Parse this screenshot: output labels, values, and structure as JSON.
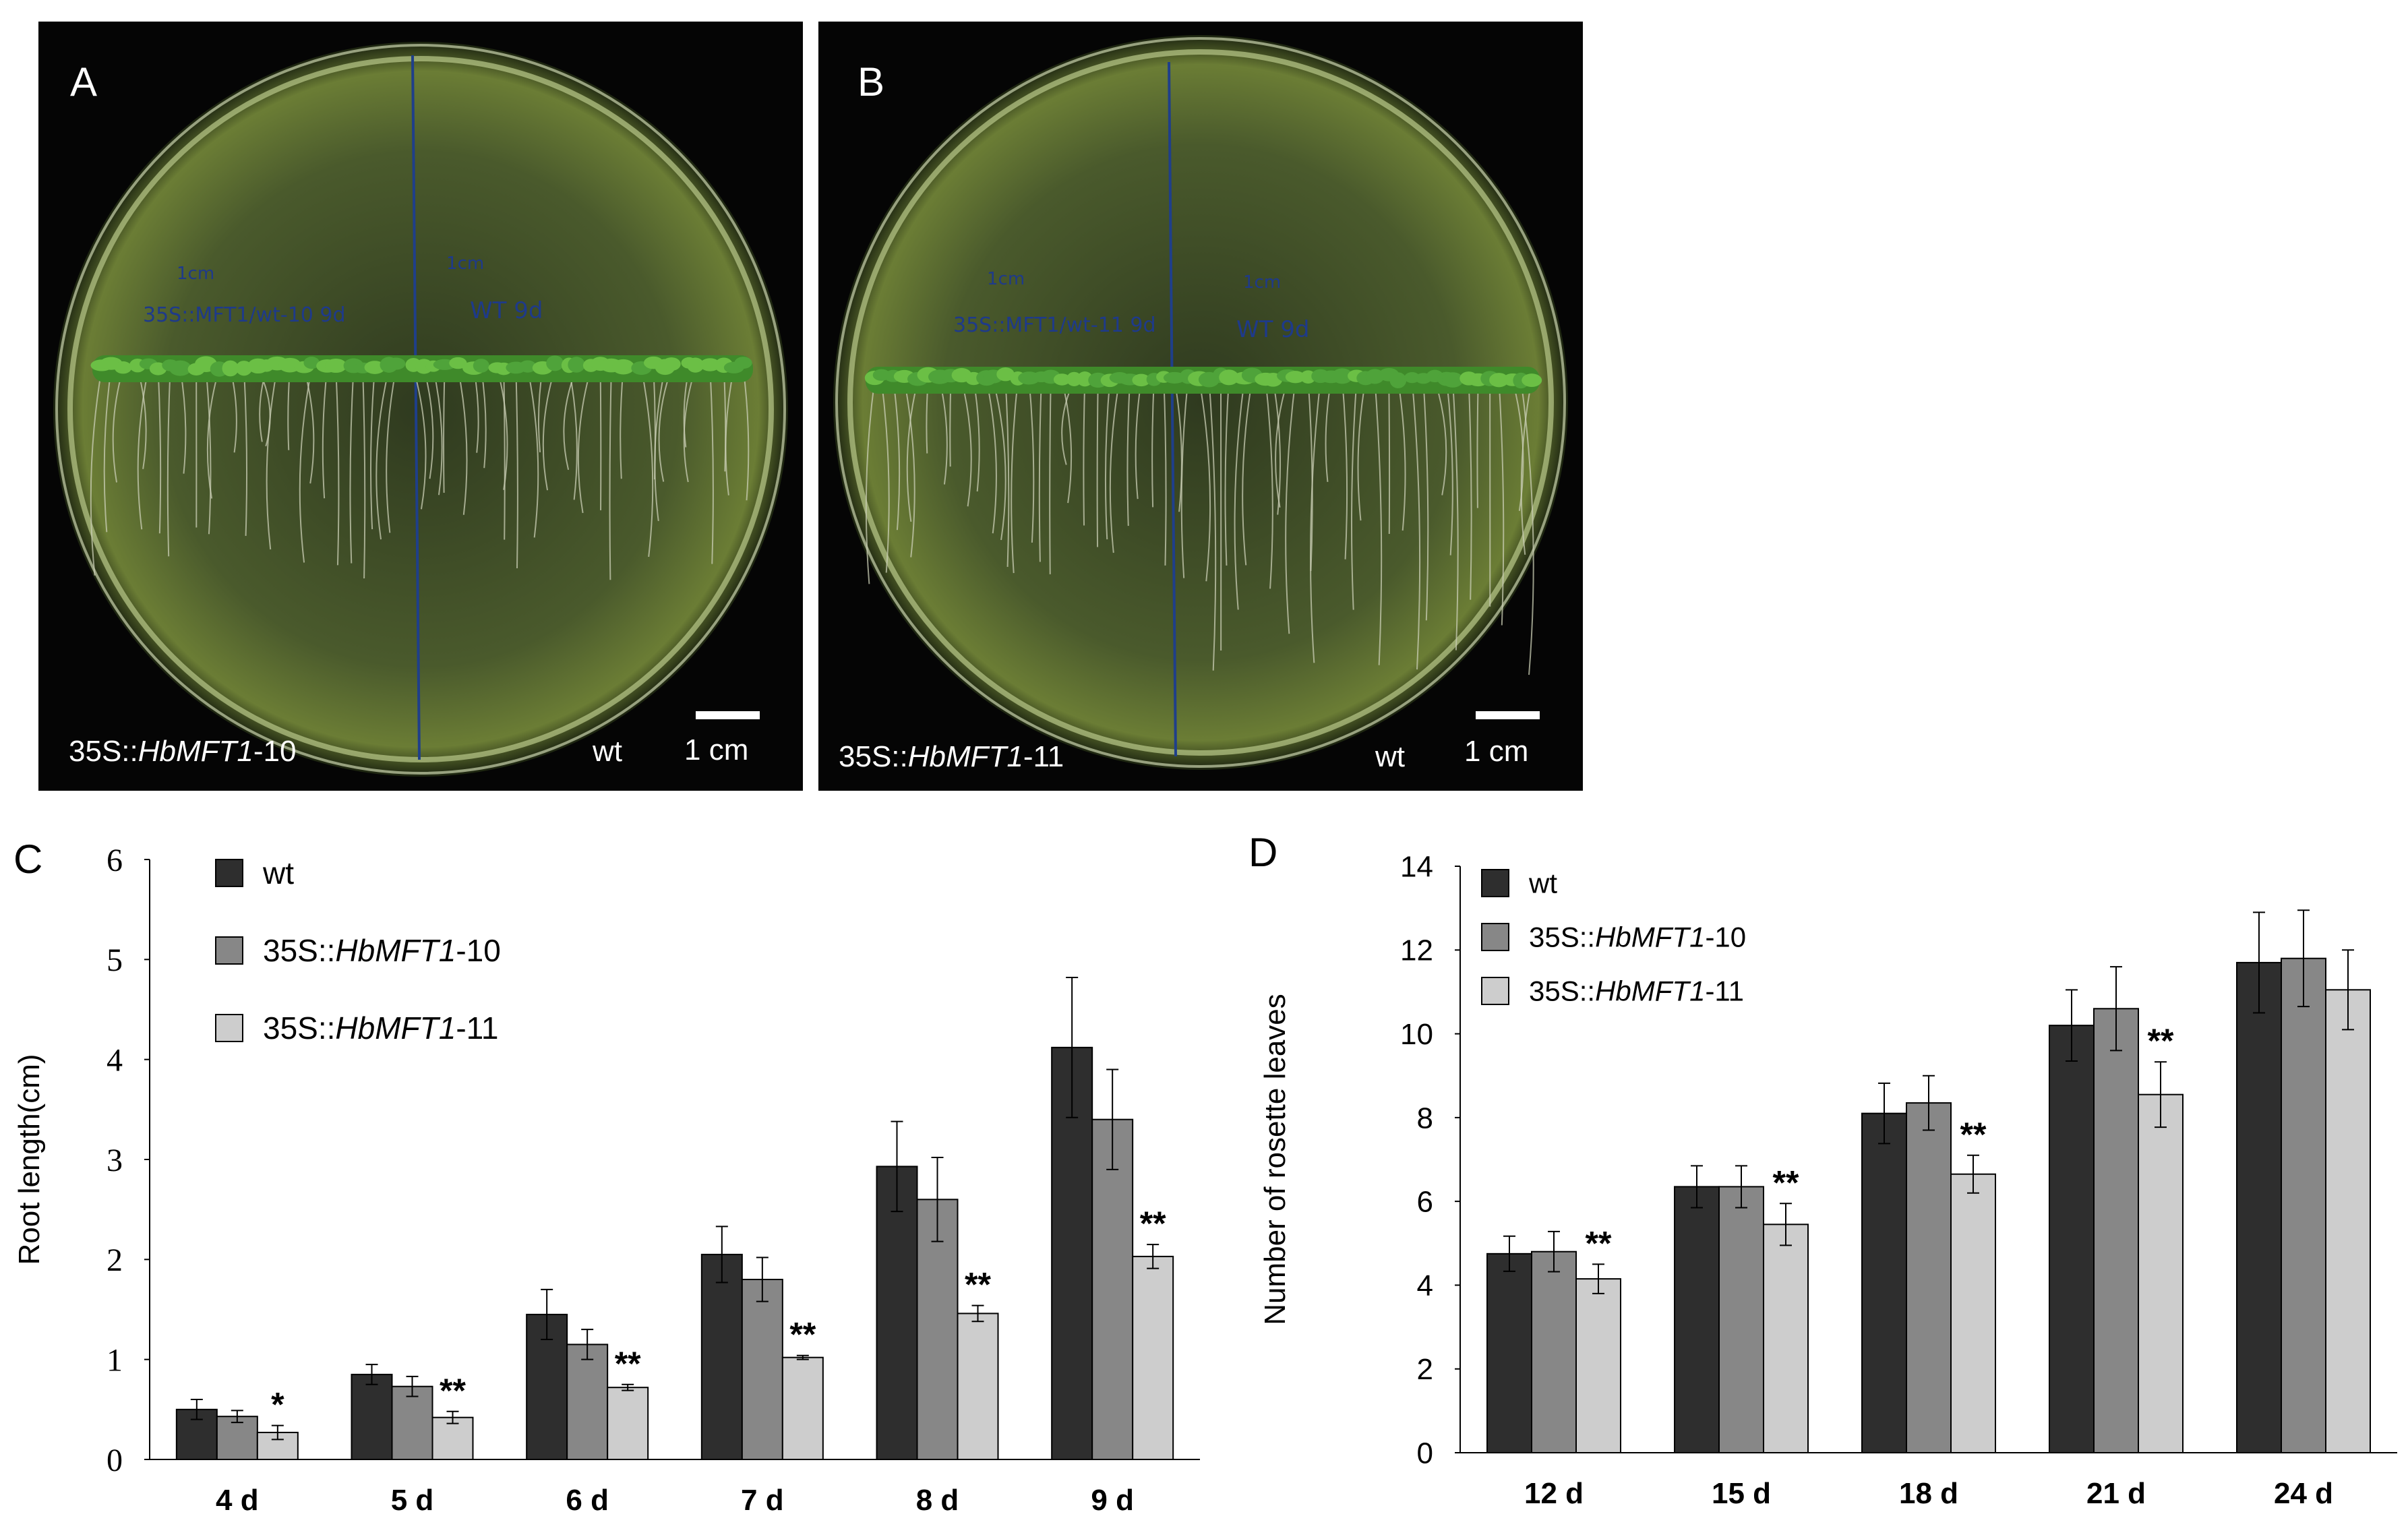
{
  "panel_a": {
    "letter": "A",
    "left_label_prefix": "35S::",
    "left_label_gene": "HbMFT1",
    "left_label_suffix": "-10",
    "right_label": "wt",
    "scale_label": "1 cm",
    "plate_text_left": "35S::MFT1/wt-10  9d",
    "plate_text_right": "WT  9d",
    "plate_scale_left": "1cm",
    "plate_scale_right": "1cm"
  },
  "panel_b": {
    "letter": "B",
    "left_label_prefix": "35S::",
    "left_label_gene": "HbMFT1",
    "left_label_suffix": "-11",
    "right_label": "wt",
    "scale_label": "1 cm",
    "plate_text_left": "35S::MFT1/wt-11  9d",
    "plate_text_right": "WT  9d",
    "plate_scale_left": "1cm",
    "plate_scale_right": "1cm"
  },
  "colors": {
    "wt": "#2e2e2e",
    "line10": "#878787",
    "line11": "#cdcdcd"
  },
  "chart_data": [
    {
      "panel": "C",
      "type": "bar",
      "categories": [
        "4 d",
        "5 d",
        "6 d",
        "7 d",
        "8 d",
        "9 d"
      ],
      "ylabel": "Root length(cm)",
      "ylim": [
        0,
        6
      ],
      "yticks": [
        "0",
        "1",
        "2",
        "3",
        "4",
        "5",
        "6"
      ],
      "legend_position": "top-left",
      "series": [
        {
          "name": "wt",
          "label_prefix": "wt",
          "label_gene": "",
          "label_suffix": "",
          "values": [
            0.5,
            0.85,
            1.45,
            2.05,
            2.93,
            4.12
          ],
          "errors": [
            0.1,
            0.1,
            0.25,
            0.28,
            0.45,
            0.7
          ]
        },
        {
          "name": "35S::HbMFT1-10",
          "label_prefix": "35S::",
          "label_gene": "HbMFT1",
          "label_suffix": "-10",
          "values": [
            0.43,
            0.73,
            1.15,
            1.8,
            2.6,
            3.4
          ],
          "errors": [
            0.06,
            0.1,
            0.15,
            0.22,
            0.42,
            0.5
          ]
        },
        {
          "name": "35S::HbMFT1-11",
          "label_prefix": "35S::",
          "label_gene": "HbMFT1",
          "label_suffix": "-11",
          "values": [
            0.27,
            0.42,
            0.72,
            1.02,
            1.46,
            2.03
          ],
          "errors": [
            0.07,
            0.06,
            0.03,
            0.02,
            0.08,
            0.12
          ]
        }
      ],
      "significance": [
        "*",
        "**",
        "**",
        "**",
        "**",
        "**"
      ]
    },
    {
      "panel": "D",
      "type": "bar",
      "categories": [
        "12 d",
        "15 d",
        "18 d",
        "21 d",
        "24 d"
      ],
      "ylabel": "Number of rosette leaves",
      "ylim": [
        0,
        14
      ],
      "yticks": [
        "0",
        "2",
        "4",
        "6",
        "8",
        "10",
        "12",
        "14"
      ],
      "legend_position": "top-left",
      "series": [
        {
          "name": "wt",
          "label_prefix": "wt",
          "label_gene": "",
          "label_suffix": "",
          "values": [
            4.75,
            6.35,
            8.1,
            10.2,
            11.7
          ],
          "errors": [
            0.42,
            0.5,
            0.72,
            0.85,
            1.2
          ]
        },
        {
          "name": "35S::HbMFT1-10",
          "label_prefix": "35S::",
          "label_gene": "HbMFT1",
          "label_suffix": "-10",
          "values": [
            4.8,
            6.35,
            8.35,
            10.6,
            11.8
          ],
          "errors": [
            0.48,
            0.5,
            0.65,
            1.0,
            1.15
          ]
        },
        {
          "name": "35S::HbMFT1-11",
          "label_prefix": "35S::",
          "label_gene": "HbMFT1",
          "label_suffix": "-11",
          "values": [
            4.15,
            5.45,
            6.65,
            8.55,
            11.05
          ],
          "errors": [
            0.35,
            0.5,
            0.45,
            0.78,
            0.95
          ]
        }
      ],
      "significance": [
        "**",
        "**",
        "**",
        "**",
        ""
      ]
    }
  ]
}
